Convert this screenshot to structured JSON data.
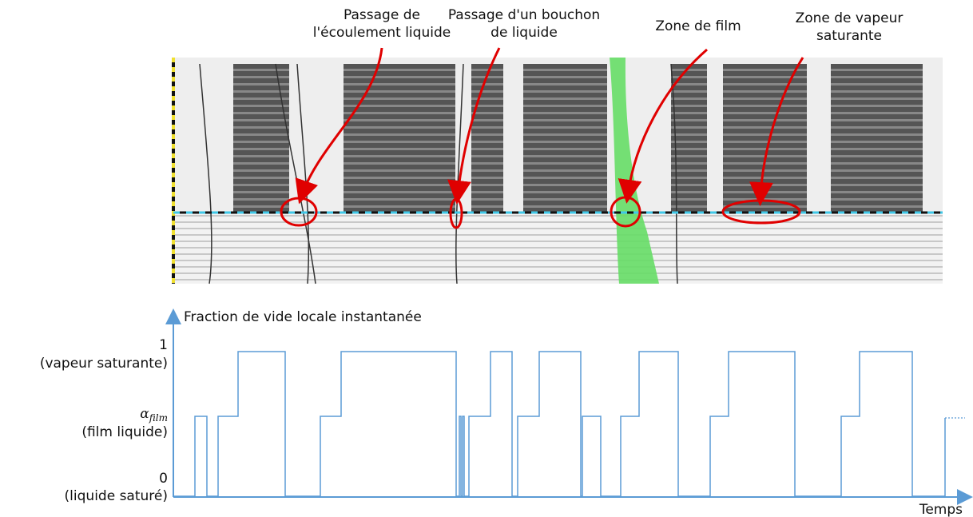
{
  "annotations": [
    {
      "lines": [
        "Passage de",
        "l'écoulement liquide"
      ]
    },
    {
      "lines": [
        "Passage d'un bouchon",
        "de liquide"
      ]
    },
    {
      "lines": [
        "Zone de film"
      ]
    },
    {
      "lines": [
        "Zone de vapeur",
        "saturante"
      ]
    }
  ],
  "plot": {
    "y_axis_title": "Fraction de vide locale instantanée",
    "x_axis_title": "Temps",
    "levels": [
      {
        "value": "1",
        "description": "(vapeur saturante)"
      },
      {
        "symbol": "α",
        "subscript": "film",
        "description": "(film liquide)"
      },
      {
        "value": "0",
        "description": "(liquide saturé)"
      }
    ]
  }
}
